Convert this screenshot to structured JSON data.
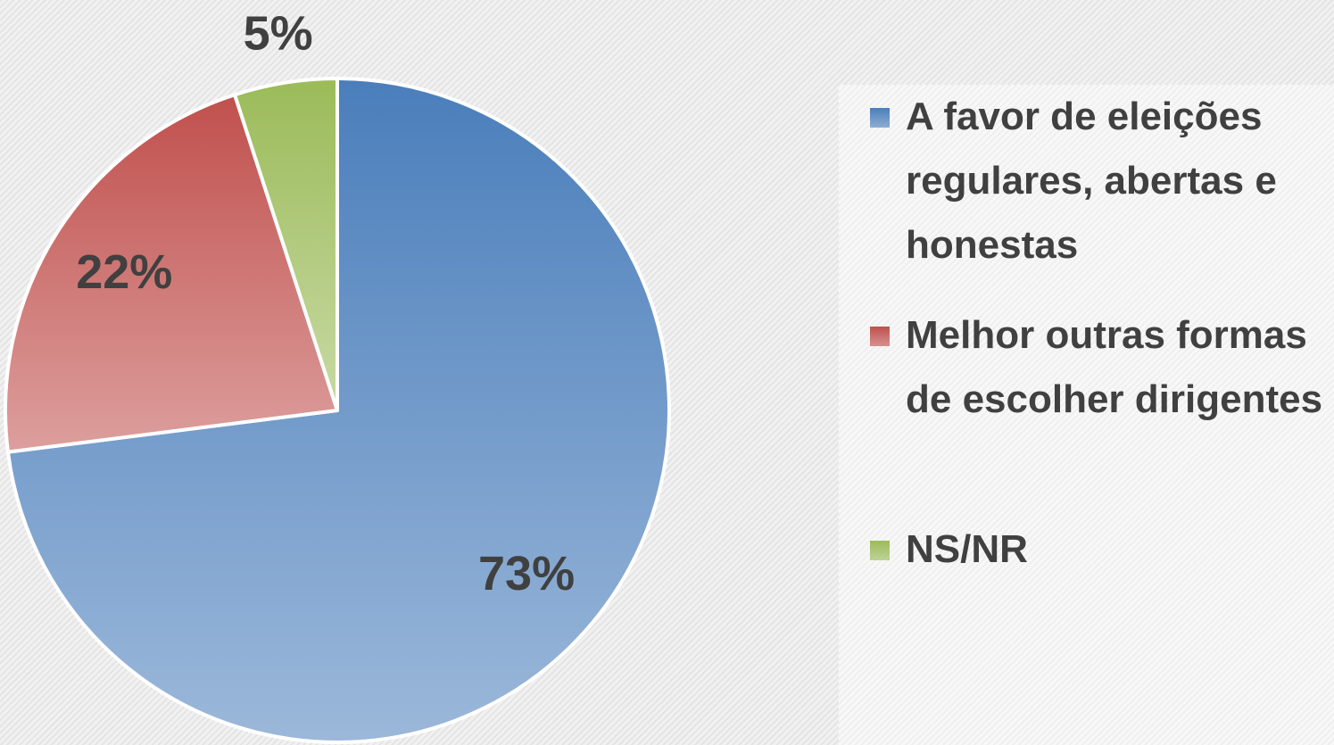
{
  "chart_data": {
    "type": "pie",
    "categories": [
      "A favor de eleições regulares, abertas e honestas",
      "Melhor outras formas de escolher dirigentes",
      "NS/NR"
    ],
    "values": [
      73,
      22,
      5
    ],
    "value_labels": [
      "73%",
      "22%",
      "5%"
    ],
    "colors": [
      "#4a7ebb",
      "#c0504d",
      "#9bbb59"
    ],
    "legend": "right"
  }
}
